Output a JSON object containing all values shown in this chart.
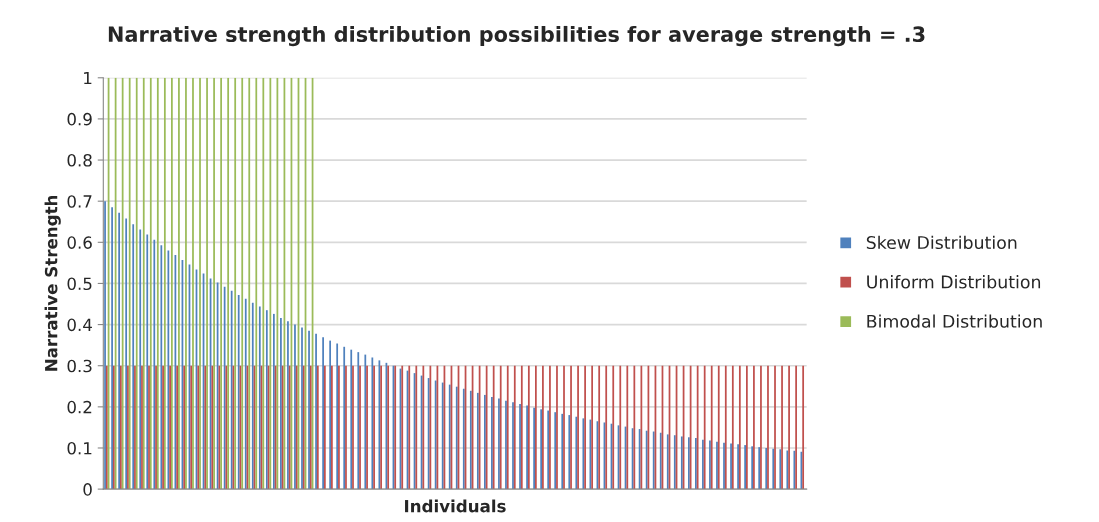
{
  "chart_data": {
    "type": "bar",
    "title": "Narrative strength distribution possibilities for average strength = .3",
    "xlabel": "Individuals",
    "ylabel": "Narrative Strength",
    "categories": [
      null,
      null,
      null,
      null,
      null,
      null,
      null,
      null,
      null,
      null,
      null,
      null,
      null,
      null,
      null,
      null,
      null,
      null,
      null,
      null,
      null,
      null,
      null,
      null,
      null,
      null,
      null,
      null,
      null,
      null,
      null,
      null,
      null,
      null,
      null,
      null,
      null,
      null,
      null,
      null,
      null,
      null,
      null,
      null,
      null,
      null,
      null,
      null,
      null,
      null,
      null,
      null,
      null,
      null,
      null,
      null,
      null,
      null,
      null,
      null,
      null,
      null,
      null,
      null,
      null,
      null,
      null,
      null,
      null,
      null,
      null,
      null,
      null,
      null,
      null,
      null,
      null,
      null,
      null,
      null,
      null,
      null,
      null,
      null,
      null,
      null,
      null,
      null,
      null,
      null,
      null,
      null,
      null,
      null,
      null,
      null,
      null,
      null,
      null,
      null
    ],
    "series": [
      {
        "name": "Skew Distribution",
        "color": "#4f81bd",
        "values": [
          0.7,
          0.685,
          0.672,
          0.658,
          0.644,
          0.631,
          0.619,
          0.606,
          0.593,
          0.58,
          0.569,
          0.557,
          0.546,
          0.534,
          0.524,
          0.512,
          0.502,
          0.492,
          0.482,
          0.472,
          0.463,
          0.453,
          0.444,
          0.435,
          0.426,
          0.416,
          0.408,
          0.4,
          0.393,
          0.385,
          0.378,
          0.369,
          0.361,
          0.354,
          0.346,
          0.339,
          0.333,
          0.327,
          0.32,
          0.313,
          0.307,
          0.3,
          0.293,
          0.288,
          0.282,
          0.276,
          0.27,
          0.264,
          0.259,
          0.254,
          0.249,
          0.244,
          0.239,
          0.234,
          0.229,
          0.224,
          0.22,
          0.215,
          0.211,
          0.207,
          0.203,
          0.198,
          0.194,
          0.191,
          0.187,
          0.183,
          0.18,
          0.176,
          0.172,
          0.169,
          0.165,
          0.162,
          0.159,
          0.155,
          0.152,
          0.148,
          0.146,
          0.142,
          0.14,
          0.137,
          0.133,
          0.131,
          0.128,
          0.126,
          0.124,
          0.12,
          0.118,
          0.115,
          0.113,
          0.111,
          0.109,
          0.107,
          0.104,
          0.102,
          0.1,
          0.098,
          0.097,
          0.094,
          0.093,
          0.091
        ]
      },
      {
        "name": "Uniform Distribution",
        "color": "#c0504d",
        "values": [
          0.3,
          0.3,
          0.3,
          0.3,
          0.3,
          0.3,
          0.3,
          0.3,
          0.3,
          0.3,
          0.3,
          0.3,
          0.3,
          0.3,
          0.3,
          0.3,
          0.3,
          0.3,
          0.3,
          0.3,
          0.3,
          0.3,
          0.3,
          0.3,
          0.3,
          0.3,
          0.3,
          0.3,
          0.3,
          0.3,
          0.3,
          0.3,
          0.3,
          0.3,
          0.3,
          0.3,
          0.3,
          0.3,
          0.3,
          0.3,
          0.3,
          0.3,
          0.3,
          0.3,
          0.3,
          0.3,
          0.3,
          0.3,
          0.3,
          0.3,
          0.3,
          0.3,
          0.3,
          0.3,
          0.3,
          0.3,
          0.3,
          0.3,
          0.3,
          0.3,
          0.3,
          0.3,
          0.3,
          0.3,
          0.3,
          0.3,
          0.3,
          0.3,
          0.3,
          0.3,
          0.3,
          0.3,
          0.3,
          0.3,
          0.3,
          0.3,
          0.3,
          0.3,
          0.3,
          0.3,
          0.3,
          0.3,
          0.3,
          0.3,
          0.3,
          0.3,
          0.3,
          0.3,
          0.3,
          0.3,
          0.3,
          0.3,
          0.3,
          0.3,
          0.3,
          0.3,
          0.3,
          0.3,
          0.3,
          0.3
        ]
      },
      {
        "name": "Bimodal Distribution",
        "color": "#9bbb59",
        "values": [
          1,
          1,
          1,
          1,
          1,
          1,
          1,
          1,
          1,
          1,
          1,
          1,
          1,
          1,
          1,
          1,
          1,
          1,
          1,
          1,
          1,
          1,
          1,
          1,
          1,
          1,
          1,
          1,
          1,
          1,
          0,
          0,
          0,
          0,
          0,
          0,
          0,
          0,
          0,
          0,
          0,
          0,
          0,
          0,
          0,
          0,
          0,
          0,
          0,
          0,
          0,
          0,
          0,
          0,
          0,
          0,
          0,
          0,
          0,
          0,
          0,
          0,
          0,
          0,
          0,
          0,
          0,
          0,
          0,
          0,
          0,
          0,
          0,
          0,
          0,
          0,
          0,
          0,
          0,
          0,
          0,
          0,
          0,
          0,
          0,
          0,
          0,
          0,
          0,
          0,
          0,
          0,
          0,
          0,
          0,
          0,
          0,
          0,
          0,
          0
        ]
      }
    ],
    "ylim": [
      0,
      1
    ],
    "yticks": [
      0,
      0.1,
      0.2,
      0.3,
      0.4,
      0.5,
      0.6,
      0.7,
      0.8,
      0.9,
      1
    ],
    "grid": "y",
    "legend": "right"
  }
}
